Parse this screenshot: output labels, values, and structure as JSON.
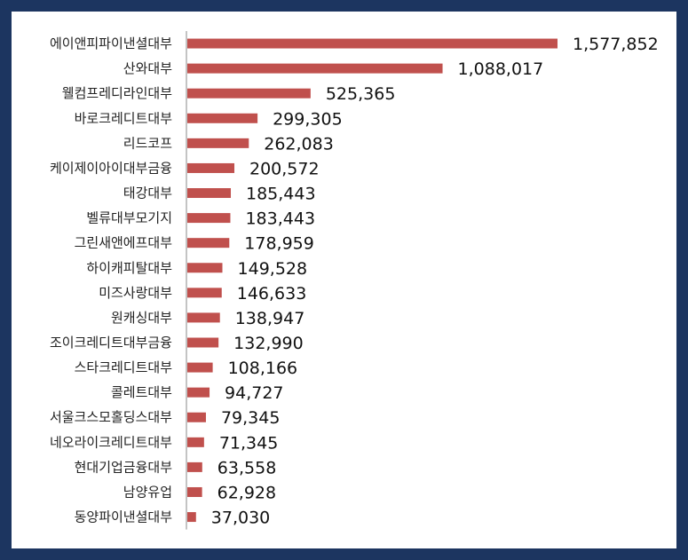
{
  "chart_data": {
    "type": "bar",
    "orientation": "horizontal",
    "title": "",
    "xlabel": "",
    "ylabel": "",
    "legend": "none",
    "grid": false,
    "bar_color": "#c0504d",
    "frame_color": "#1c3560",
    "xlim": [
      0,
      1577852
    ],
    "categories": [
      "에이앤피파이낸셜대부",
      "산와대부",
      "웰컴프레디라인대부",
      "바로크레디트대부",
      "리드코프",
      "케이제이아이대부금융",
      "태강대부",
      "벨류대부모기지",
      "그린새앤에프대부",
      "하이캐피탈대부",
      "미즈사랑대부",
      "원캐싱대부",
      "조이크레디트대부금융",
      "스타크레디트대부",
      "콜레트대부",
      "서울크스모홀딩스대부",
      "네오라이크레디트대부",
      "현대기업금융대부",
      "남양유업",
      "동양파이낸셜대부"
    ],
    "values": [
      1577852,
      1088017,
      525365,
      299305,
      262083,
      200572,
      185443,
      183443,
      178959,
      149528,
      146633,
      138947,
      132990,
      108166,
      94727,
      79345,
      71345,
      63558,
      62928,
      37030
    ],
    "value_labels": [
      "1,577,852",
      "1,088,017",
      "525,365",
      "299,305",
      "262,083",
      "200,572",
      "185,443",
      "183,443",
      "178,959",
      "149,528",
      "146,633",
      "138,947",
      "132,990",
      "108,166",
      "94,727",
      "79,345",
      "71,345",
      "63,558",
      "62,928",
      "37,030"
    ]
  }
}
